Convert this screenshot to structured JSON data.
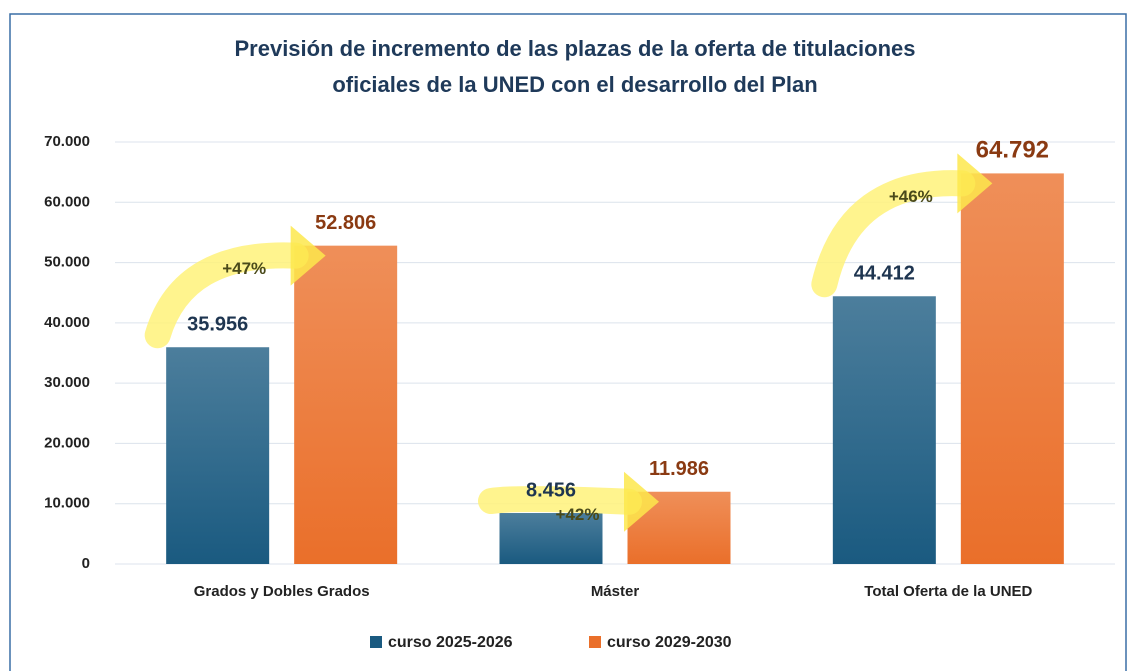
{
  "chart_data": {
    "type": "bar",
    "title": [
      "Previsión de incremento de las plazas de la oferta de titulaciones",
      "oficiales de la UNED con el desarrollo del Plan"
    ],
    "categories": [
      "Grados y Dobles Grados",
      "Máster",
      "Total Oferta de la UNED"
    ],
    "series": [
      {
        "name": "curso 2025-2026",
        "color": "#1a5a80",
        "values": [
          35956,
          8456,
          44412
        ],
        "value_labels": [
          "35.956",
          "8.456",
          "44.412"
        ]
      },
      {
        "name": "curso 2029-2030",
        "color": "#ea6f2a",
        "values": [
          52806,
          11986,
          64792
        ],
        "value_labels": [
          "52.806",
          "11.986",
          "64.792"
        ]
      }
    ],
    "annotations": [
      "+47%",
      "+42%",
      "+46%"
    ],
    "ylim": [
      0,
      70000
    ],
    "yticks": [
      0,
      {
        "value": 10000,
        "label": "10.000"
      },
      {
        "value": 20000,
        "label": "20.000"
      },
      {
        "value": 30000,
        "label": "30.000"
      },
      {
        "value": 40000,
        "label": "40.000"
      },
      {
        "value": 50000,
        "label": "50.000"
      },
      {
        "value": 60000,
        "label": "60.000"
      },
      {
        "value": 70000,
        "label": "70.000"
      }
    ],
    "grid": true,
    "legend": "bottom"
  }
}
